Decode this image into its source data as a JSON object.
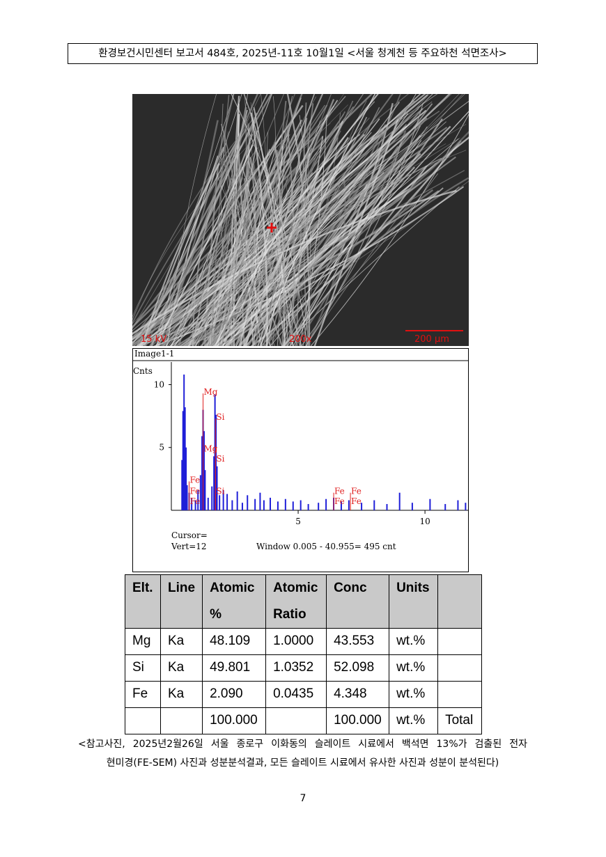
{
  "header": {
    "title": "환경보건시민센터 보고서 484호, 2025년-11호 10월1일 <서울 청계천 등 주요하천 석면조사>"
  },
  "sem_image": {
    "voltage": "15 kV",
    "magnification": "200x",
    "scale_bar": "200 μm"
  },
  "spectrum": {
    "title": "Image1-1",
    "y_label": "Cnts",
    "xlim": [
      0,
      11.7
    ],
    "ylim": [
      0,
      11.8
    ],
    "xticks": [
      5,
      10
    ],
    "yticks": [
      5,
      10
    ],
    "color": "#1f1fd8",
    "marker_color": "#e02020",
    "x": [
      0.42,
      0.46,
      0.5,
      0.54,
      0.58,
      0.62,
      0.7,
      0.8,
      0.95,
      1.05,
      1.15,
      1.21,
      1.25,
      1.29,
      1.33,
      1.45,
      1.6,
      1.68,
      1.72,
      1.76,
      1.8,
      1.9,
      2.05,
      2.2,
      2.4,
      2.6,
      2.8,
      3.0,
      3.3,
      3.5,
      3.65,
      3.9,
      4.2,
      4.5,
      4.8,
      5.1,
      5.4,
      5.8,
      6.1,
      6.4,
      6.7,
      7.0,
      7.5,
      8.0,
      8.5,
      9.0,
      9.5,
      10.2,
      10.8,
      11.3,
      11.6
    ],
    "values": [
      4.0,
      7.9,
      10.8,
      8.2,
      5.0,
      2.0,
      1.4,
      1.0,
      0.8,
      1.6,
      2.8,
      5.9,
      8.0,
      6.3,
      3.2,
      1.0,
      1.9,
      4.3,
      9.2,
      7.6,
      3.5,
      1.2,
      1.6,
      1.3,
      0.8,
      1.5,
      0.6,
      1.2,
      0.9,
      1.4,
      0.8,
      1.0,
      0.7,
      0.9,
      0.7,
      0.8,
      0.5,
      0.6,
      0.9,
      1.0,
      0.7,
      0.8,
      0.6,
      0.8,
      0.5,
      1.4,
      0.6,
      0.9,
      0.5,
      0.8,
      0.6
    ],
    "markers": [
      {
        "label": "Mg",
        "energy": 1.25,
        "counts": 9.3
      },
      {
        "label": "Mg",
        "energy": 1.25,
        "counts": 4.8
      },
      {
        "label": "Si",
        "energy": 1.74,
        "counts": 7.3
      },
      {
        "label": "Si",
        "energy": 1.74,
        "counts": 4.0
      },
      {
        "label": "Si",
        "energy": 1.74,
        "counts": 1.4
      },
      {
        "label": "Fe",
        "energy": 0.7,
        "counts": 2.3
      },
      {
        "label": "Fe",
        "energy": 0.7,
        "counts": 1.4
      },
      {
        "label": "Fe",
        "energy": 0.7,
        "counts": 0.6
      },
      {
        "label": "Fe",
        "energy": 6.4,
        "counts": 1.4
      },
      {
        "label": "Fe",
        "energy": 6.4,
        "counts": 0.6
      },
      {
        "label": "Fe",
        "energy": 7.06,
        "counts": 1.4
      },
      {
        "label": "Fe",
        "energy": 7.06,
        "counts": 0.6
      }
    ],
    "cursor": "Cursor=",
    "vert": "Vert=12",
    "window": "Window 0.005 - 40.955=  495 cnt"
  },
  "table": {
    "header": [
      "Elt.",
      "Line",
      "Atomic %",
      "Atomic Ratio",
      "Conc",
      "Units"
    ],
    "rows": [
      [
        "Mg",
        "Ka",
        "48.109",
        "1.0000",
        "43.553",
        "wt.%"
      ],
      [
        "Si",
        "Ka",
        "49.801",
        "1.0352",
        "52.098",
        "wt.%"
      ],
      [
        "Fe",
        "Ka",
        "2.090",
        "0.0435",
        "4.348",
        "wt.%"
      ]
    ],
    "total": {
      "atomic_percent": "100.000",
      "conc": "100.000",
      "units": "wt.%",
      "label": "Total"
    }
  },
  "caption": [
    "<참고사진, 2025년2월26일 서울 종로구 이화동의 슬레이트 시료에서 백석면 13%가 검출된 전자",
    "현미경(FE-SEM) 사진과 성분분석결과, 모든 슬레이트 시료에서 유사한 사진과 성분이 분석된다)"
  ],
  "page_number": "7"
}
